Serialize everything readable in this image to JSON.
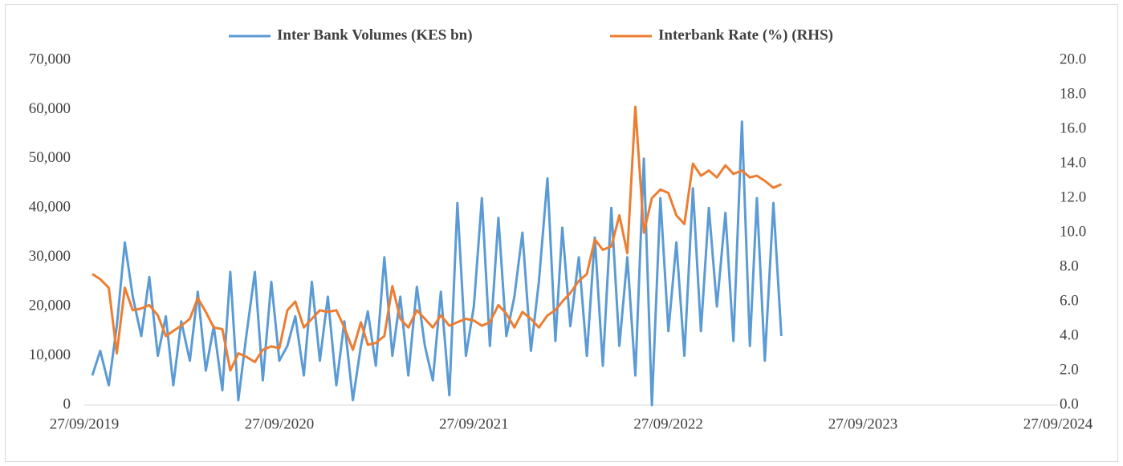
{
  "chart_data": {
    "type": "line",
    "x": [
      "12/10/2019",
      "27/10/2019",
      "12/11/2019",
      "27/11/2019",
      "12/12/2019",
      "27/12/2019",
      "12/01/2020",
      "27/01/2020",
      "12/02/2020",
      "27/02/2020",
      "12/03/2020",
      "27/03/2020",
      "12/04/2020",
      "27/04/2020",
      "12/05/2020",
      "27/05/2020",
      "12/06/2020",
      "27/06/2020",
      "12/07/2020",
      "27/07/2020",
      "12/08/2020",
      "27/08/2020",
      "12/09/2020",
      "27/09/2020",
      "12/10/2020",
      "27/10/2020",
      "12/11/2020",
      "27/11/2020",
      "12/12/2020",
      "27/12/2020",
      "12/01/2021",
      "27/01/2021",
      "12/02/2021",
      "27/02/2021",
      "12/03/2021",
      "27/03/2021",
      "12/04/2021",
      "27/04/2021",
      "12/05/2021",
      "27/05/2021",
      "12/06/2021",
      "27/06/2021",
      "12/07/2021",
      "27/07/2021",
      "12/08/2021",
      "27/08/2021",
      "12/09/2021",
      "27/09/2021",
      "12/10/2021",
      "27/10/2021",
      "12/11/2021",
      "27/11/2021",
      "12/12/2021",
      "27/12/2021",
      "12/01/2022",
      "27/01/2022",
      "12/02/2022",
      "27/02/2022",
      "12/03/2022",
      "27/03/2022",
      "12/04/2022",
      "27/04/2022",
      "12/05/2022",
      "27/05/2022",
      "12/06/2022",
      "27/06/2022",
      "12/07/2022",
      "27/07/2022",
      "12/08/2022",
      "27/08/2022",
      "12/09/2022",
      "27/09/2022",
      "12/10/2022",
      "27/10/2022",
      "12/11/2022",
      "27/11/2022",
      "12/12/2022",
      "27/12/2022",
      "12/01/2023",
      "27/01/2023",
      "12/02/2023",
      "27/02/2023",
      "12/03/2023",
      "27/03/2023",
      "12/04/2023",
      "27/04/2023"
    ],
    "series": [
      {
        "name": "Inter Bank Volumes (KES bn)",
        "color": "#5b9bd5",
        "values": [
          6000,
          11000,
          4000,
          16000,
          33000,
          22000,
          14000,
          26000,
          10000,
          18000,
          4000,
          17000,
          9000,
          23000,
          7000,
          16000,
          3000,
          27000,
          1000,
          14000,
          27000,
          5000,
          25000,
          9000,
          12000,
          18000,
          6000,
          25000,
          9000,
          22000,
          4000,
          17000,
          1000,
          12000,
          19000,
          8000,
          30000,
          10000,
          22000,
          6000,
          24000,
          12000,
          5000,
          23000,
          2000,
          41000,
          10000,
          20000,
          42000,
          12000,
          38000,
          14000,
          22000,
          35000,
          11000,
          25000,
          46000,
          13000,
          36000,
          16000,
          30000,
          10000,
          34000,
          8000,
          40000,
          12000,
          30000,
          6000,
          50000,
          0,
          42000,
          15000,
          33000,
          10000,
          44000,
          15000,
          40000,
          20000,
          39000,
          13000,
          57500,
          12000,
          42000,
          9000,
          41000,
          14000
        ]
      },
      {
        "name": "Interbank Rate (%) (RHS)",
        "color": "#ed7d31",
        "axis": "y2",
        "values": [
          7.6,
          7.3,
          6.8,
          3.0,
          6.8,
          5.5,
          5.6,
          5.8,
          5.2,
          4.0,
          4.3,
          4.6,
          5.0,
          6.2,
          5.4,
          4.5,
          4.4,
          2.0,
          3.0,
          2.8,
          2.5,
          3.2,
          3.4,
          3.3,
          5.5,
          6.0,
          4.5,
          5.0,
          5.5,
          5.4,
          5.5,
          4.5,
          3.2,
          4.8,
          3.5,
          3.6,
          4.0,
          6.9,
          5.0,
          4.5,
          5.5,
          5.0,
          4.5,
          5.2,
          4.6,
          4.8,
          5.0,
          4.9,
          4.6,
          4.8,
          5.8,
          5.3,
          4.5,
          5.4,
          5.0,
          4.5,
          5.2,
          5.5,
          6.0,
          6.5,
          7.2,
          7.6,
          9.6,
          9.0,
          9.2,
          11.0,
          8.8,
          17.3,
          10.0,
          12.0,
          12.5,
          12.3,
          11.0,
          10.5,
          14.0,
          13.3,
          13.6,
          13.2,
          13.9,
          13.4,
          13.6,
          13.2,
          13.3,
          13.0,
          12.6,
          12.8
        ]
      }
    ],
    "xlim": [
      "27/09/2019",
      "27/09/2024"
    ],
    "xticks": [
      "27/09/2019",
      "27/09/2020",
      "27/09/2021",
      "27/09/2022",
      "27/09/2023",
      "27/09/2024"
    ],
    "ylim": [
      0,
      70000
    ],
    "yticks": [
      0,
      {
        "value": 10000,
        "label": "10,000"
      },
      {
        "value": 20000,
        "label": "20,000"
      },
      {
        "value": 30000,
        "label": "30,000"
      },
      {
        "value": 40000,
        "label": "40,000"
      },
      {
        "value": 50000,
        "label": "50,000"
      },
      {
        "value": 60000,
        "label": "60,000"
      },
      {
        "value": 70000,
        "label": "70,000"
      }
    ],
    "y2lim": [
      0,
      20
    ],
    "y2ticks": [
      {
        "value": 0,
        "label": "0.0"
      },
      {
        "value": 2,
        "label": "2.0"
      },
      {
        "value": 4,
        "label": "4.0"
      },
      {
        "value": 6,
        "label": "6.0"
      },
      {
        "value": 8,
        "label": "8.0"
      },
      {
        "value": 10,
        "label": "10.0"
      },
      {
        "value": 12,
        "label": "12.0"
      },
      {
        "value": 14,
        "label": "14.0"
      },
      {
        "value": 16,
        "label": "16.0"
      },
      {
        "value": 18,
        "label": "18.0"
      },
      {
        "value": 20,
        "label": "20.0"
      }
    ],
    "legend": "top"
  }
}
